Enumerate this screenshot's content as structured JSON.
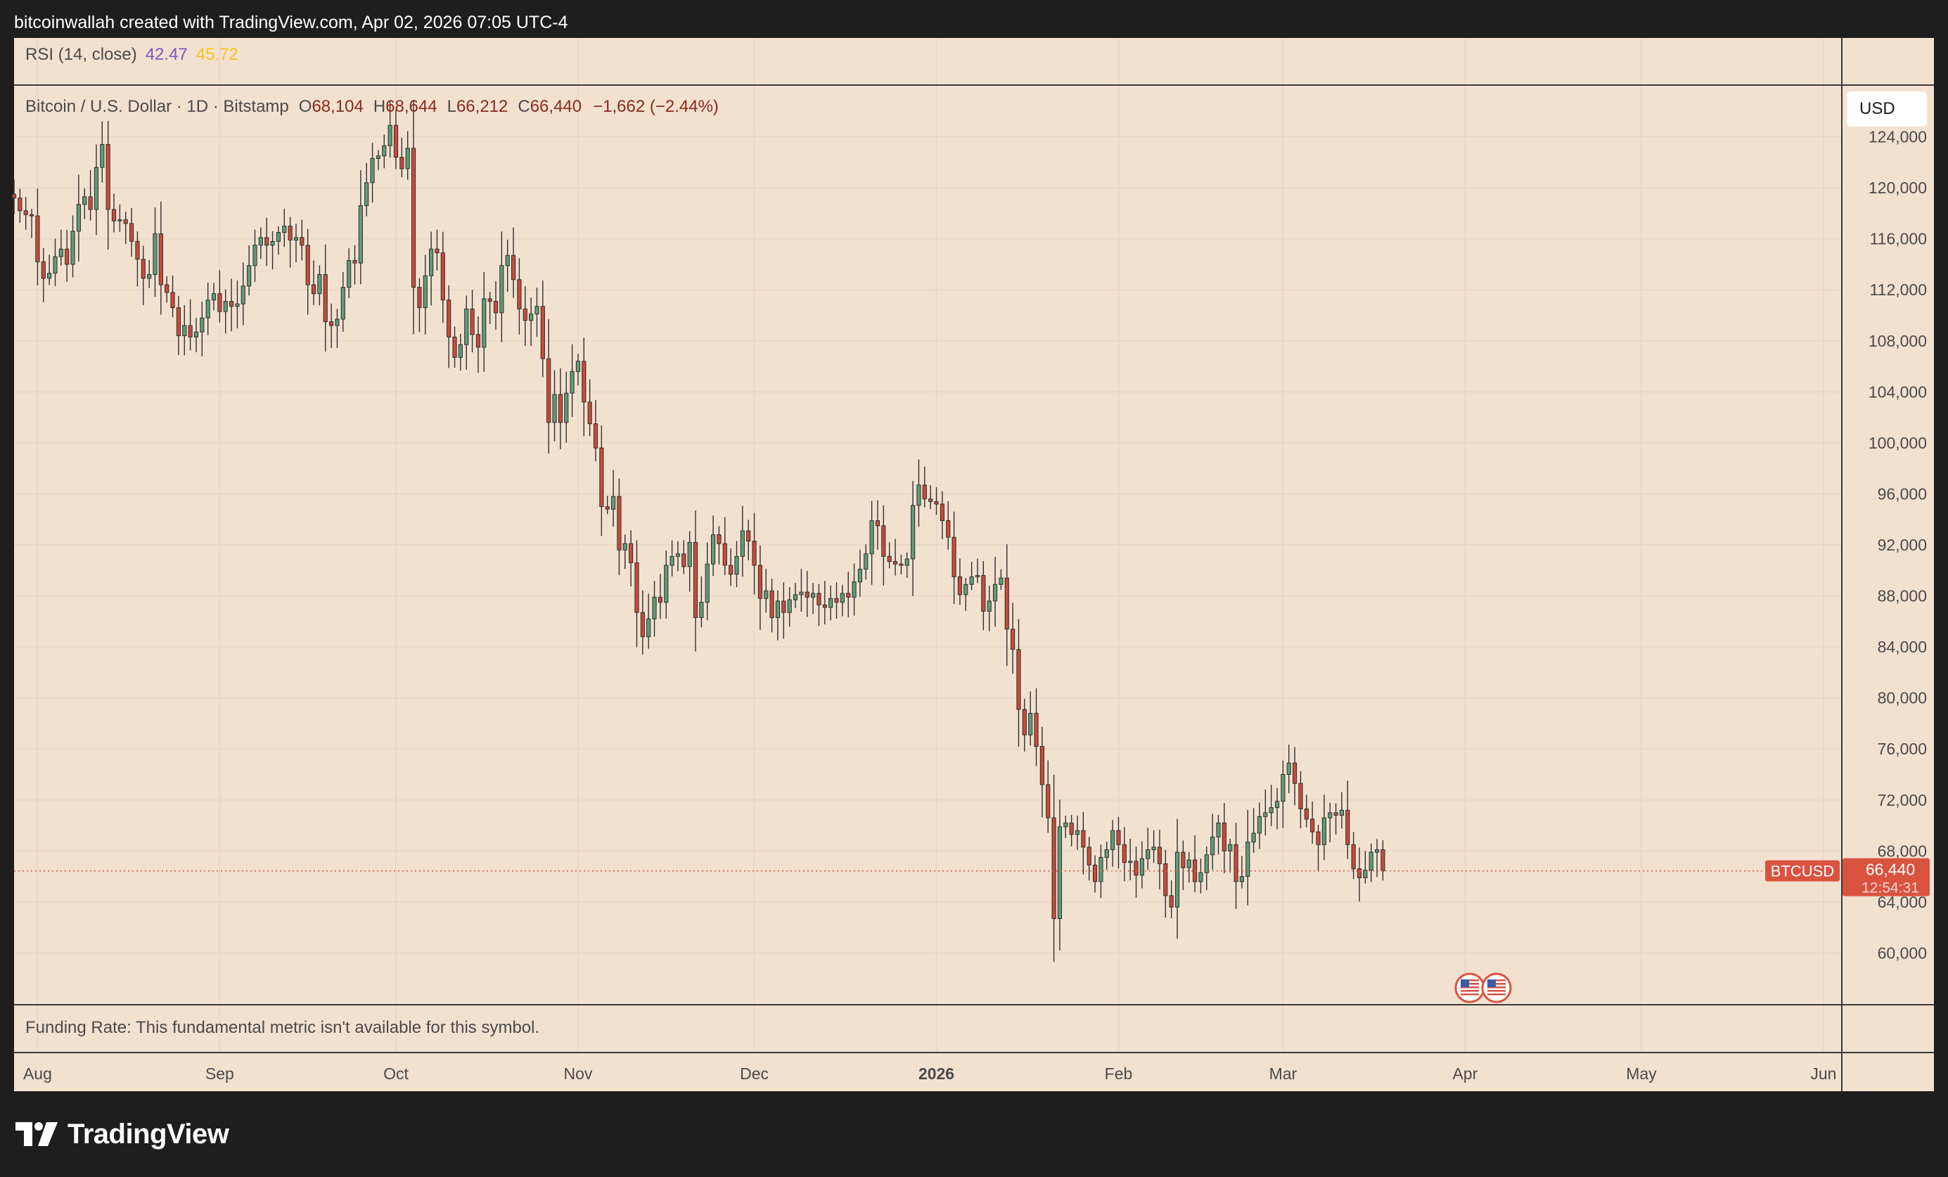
{
  "header": {
    "attribution": "bitcoinwallah created with TradingView.com, Apr 02, 2026 07:05 UTC-4"
  },
  "rsi": {
    "label": "RSI (14, close)",
    "value1": "42.47",
    "value2": "45.72"
  },
  "legend": {
    "symbol": "Bitcoin / U.S. Dollar · 1D · Bitstamp",
    "o_label": "O",
    "o_value": "68,104",
    "h_label": "H",
    "h_value": "68,644",
    "l_label": "L",
    "l_value": "66,212",
    "c_label": "C",
    "c_value": "66,440",
    "change": "−1,662 (−2.44%)"
  },
  "currency_button": "USD",
  "price_tag": {
    "symbol": "BTCUSD",
    "price": "66,440",
    "countdown": "12:54:31"
  },
  "funding": {
    "text": "Funding Rate: This fundamental metric isn't available for this symbol."
  },
  "brand": {
    "name": "TradingView"
  },
  "colors": {
    "up": "#5e9c76",
    "down": "#c94a3b",
    "wick": "#2f2f2f",
    "panel": "#f3e1d0",
    "tag": "#d9533f"
  },
  "chart_data": {
    "type": "candlestick",
    "ylim": [
      56000,
      128000
    ],
    "y_ticks": [
      124000,
      120000,
      116000,
      112000,
      108000,
      104000,
      100000,
      96000,
      92000,
      88000,
      84000,
      80000,
      76000,
      72000,
      68000,
      64000,
      60000
    ],
    "y_tick_labels": [
      "124,000",
      "120,000",
      "116,000",
      "112,000",
      "108,000",
      "104,000",
      "100,000",
      "96,000",
      "92,000",
      "88,000",
      "84,000",
      "80,000",
      "76,000",
      "72,000",
      "68,000",
      "64,000",
      "60,000"
    ],
    "x_start": "2025-07-28",
    "x_end": "2026-06-04",
    "x_ticks": [
      {
        "date": "2025-08-01",
        "label": "Aug",
        "bold": false
      },
      {
        "date": "2025-09-01",
        "label": "Sep",
        "bold": false
      },
      {
        "date": "2025-10-01",
        "label": "Oct",
        "bold": false
      },
      {
        "date": "2025-11-01",
        "label": "Nov",
        "bold": false
      },
      {
        "date": "2025-12-01",
        "label": "Dec",
        "bold": false
      },
      {
        "date": "2026-01-01",
        "label": "2026",
        "bold": true
      },
      {
        "date": "2026-02-01",
        "label": "Feb",
        "bold": false
      },
      {
        "date": "2026-03-01",
        "label": "Mar",
        "bold": false
      },
      {
        "date": "2026-04-01",
        "label": "Apr",
        "bold": false
      },
      {
        "date": "2026-05-01",
        "label": "May",
        "bold": false
      },
      {
        "date": "2026-06-01",
        "label": "Jun",
        "bold": false
      }
    ],
    "series_start": "2025-07-28",
    "closes": [
      119200,
      118200,
      117900,
      117800,
      114200,
      112900,
      113300,
      114600,
      115200,
      114000,
      116600,
      118700,
      119300,
      118300,
      121600,
      123400,
      118300,
      117400,
      117500,
      117200,
      115800,
      114400,
      112900,
      113200,
      116400,
      112400,
      111800,
      110600,
      108400,
      109200,
      108300,
      108700,
      109800,
      111200,
      111700,
      110300,
      111100,
      110700,
      110900,
      112300,
      113900,
      115500,
      116100,
      115500,
      115800,
      116500,
      117000,
      115900,
      116100,
      115500,
      112400,
      111700,
      113200,
      109500,
      109200,
      109700,
      112200,
      114300,
      114100,
      118600,
      120400,
      122300,
      122500,
      123300,
      124900,
      122400,
      121500,
      123100,
      112200,
      110600,
      113100,
      115200,
      114900,
      111200,
      108300,
      106700,
      107700,
      110500,
      108500,
      107500,
      111300,
      111100,
      110200,
      113900,
      114700,
      112800,
      110500,
      109600,
      110100,
      110700,
      106600,
      101600,
      103800,
      101600,
      103900,
      105600,
      106400,
      103200,
      101500,
      99600,
      95000,
      94800,
      95800,
      91600,
      92100,
      90600,
      86700,
      84800,
      86200,
      87900,
      87500,
      90400,
      91100,
      91300,
      90300,
      92200,
      86300,
      87500,
      90500,
      92800,
      92100,
      90400,
      89700,
      91100,
      93100,
      92300,
      90400,
      87800,
      88400,
      86300,
      87600,
      86700,
      87700,
      88100,
      88300,
      87900,
      88200,
      87300,
      87100,
      87800,
      87500,
      88200,
      87900,
      89100,
      90100,
      91300,
      93900,
      93500,
      91100,
      90700,
      90500,
      90400,
      90900,
      95100,
      96700,
      95600,
      95400,
      95200,
      93900,
      92600,
      89500,
      88100,
      88900,
      89500,
      89600,
      86800,
      87600,
      88900,
      89400,
      85400,
      83800,
      79100,
      77100,
      78800,
      76200,
      73200,
      70600,
      62700,
      69900,
      70200,
      69300,
      69600,
      68300,
      66900,
      65600,
      67500,
      68100,
      69600,
      68500,
      67100,
      67200,
      66100,
      67400,
      68100,
      68300,
      67000,
      64500,
      63600,
      67900,
      66700,
      67300,
      65600,
      66300,
      67700,
      69100,
      70200,
      68000,
      68500,
      65600,
      66000,
      68700,
      69400,
      70700,
      71000,
      71400,
      71900,
      74000,
      74900,
      73300,
      71300,
      70500,
      69500,
      68500,
      70600,
      71000,
      70800,
      71200,
      68500,
      66600,
      65900,
      66500,
      67900,
      68104,
      66440
    ],
    "last_price": 66440
  }
}
